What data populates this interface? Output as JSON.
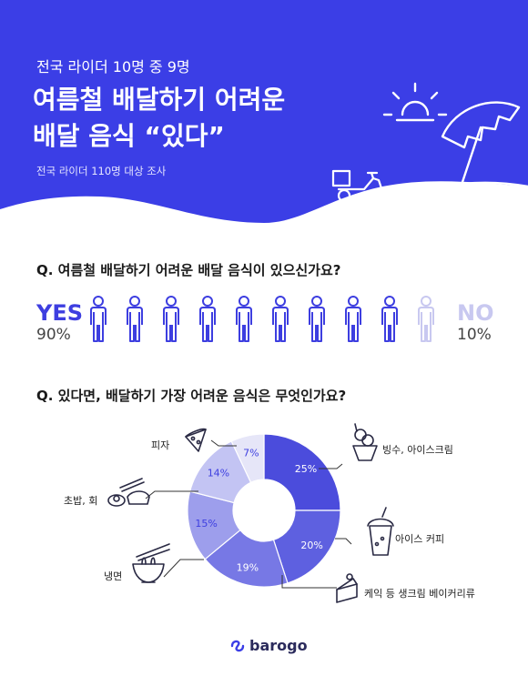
{
  "header": {
    "kicker": "전국 라이더 10명 중 9명",
    "headline_line1": "여름철 배달하기 어려운",
    "headline_line2": "배달 음식 “있다”",
    "byline": "전국 라이더 110명 대상 조사",
    "bg_color": "#3b3ee6"
  },
  "question1": {
    "text": "Q. 여름철 배달하기 어려운 배달 음식이 있으신가요?",
    "yes_label": "YES",
    "yes_pct": "90%",
    "no_label": "NO",
    "no_pct": "10%",
    "yes_count": 9,
    "no_count": 1,
    "yes_color": "#3d3ee0",
    "no_color": "#c8c8f0"
  },
  "question2": {
    "text": "Q. 있다면, 배달하기 가장 어려운 음식은 무엇인가요?"
  },
  "chart_data": {
    "type": "pie",
    "donut": true,
    "categories": [
      "빙수, 아이스크림",
      "아이스 커피",
      "케익 등 생크림 베이커리류",
      "냉면",
      "초밥, 회",
      "피자"
    ],
    "values": [
      25,
      20,
      19,
      15,
      14,
      7
    ],
    "value_labels": [
      "25%",
      "20%",
      "19%",
      "15%",
      "14%",
      "7%"
    ],
    "colors": [
      "#4b4cdc",
      "#5e60e0",
      "#7778e5",
      "#9d9eec",
      "#c3c4f3",
      "#e6e6f8"
    ]
  },
  "icons": {
    "sun": "sun-icon",
    "umbrella": "beach-umbrella-icon",
    "scooter": "delivery-scooter-icon",
    "person": "person-icon",
    "pizza": "pizza-icon",
    "ice_cream": "ice-cream-icon",
    "sushi": "sushi-icon",
    "iced_coffee": "iced-coffee-icon",
    "noodles": "noodle-bowl-icon",
    "cake": "cake-icon"
  },
  "footer": {
    "logo_text": "barogo"
  }
}
